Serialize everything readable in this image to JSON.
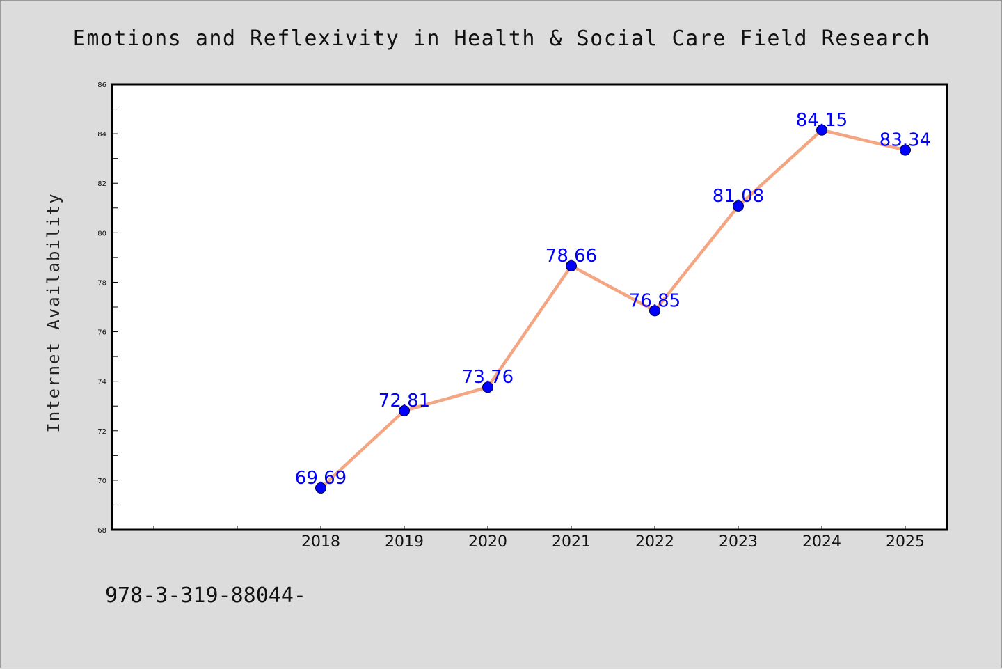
{
  "chart_data": {
    "type": "line",
    "title": "Emotions and Reflexivity in Health & Social Care Field Research",
    "xlabel": "",
    "ylabel": "Internet Availability",
    "categories": [
      "2018",
      "2019",
      "2020",
      "2021",
      "2022",
      "2023",
      "2024",
      "2025"
    ],
    "series": [
      {
        "values": [
          69.69,
          72.81,
          73.76,
          78.66,
          76.85,
          81.08,
          84.15,
          83.34
        ],
        "data_labels": [
          "69.69",
          "72.81",
          "73.76",
          "78.66",
          "76.85",
          "81.08",
          "84.15",
          "83.34"
        ]
      }
    ],
    "ylim": [
      68,
      86
    ],
    "yticks": [
      "68",
      "70",
      "72",
      "74",
      "76",
      "78",
      "80",
      "82",
      "84",
      "86"
    ],
    "grid": false,
    "legend": "none"
  },
  "footer": {
    "text": "978-3-319-88044-"
  },
  "colors": {
    "background": "#dcdcdc",
    "plot_background": "#ffffff",
    "line": "#f4a582",
    "marker": "#0000ff",
    "data_label": "#0000ff"
  }
}
